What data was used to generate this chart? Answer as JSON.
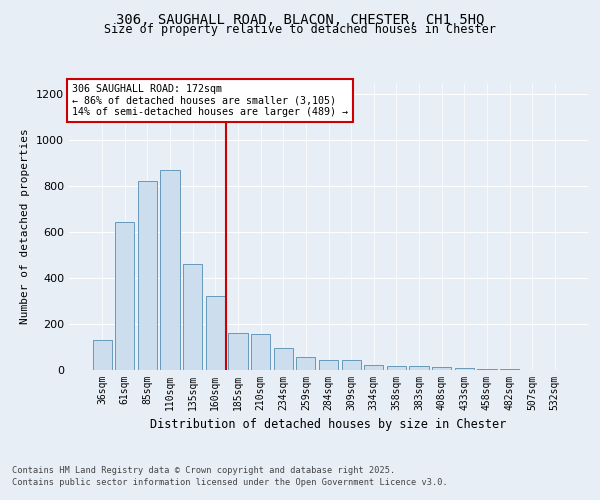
{
  "title_line1": "306, SAUGHALL ROAD, BLACON, CHESTER, CH1 5HQ",
  "title_line2": "Size of property relative to detached houses in Chester",
  "xlabel": "Distribution of detached houses by size in Chester",
  "ylabel": "Number of detached properties",
  "categories": [
    "36sqm",
    "61sqm",
    "85sqm",
    "110sqm",
    "135sqm",
    "160sqm",
    "185sqm",
    "210sqm",
    "234sqm",
    "259sqm",
    "284sqm",
    "309sqm",
    "334sqm",
    "358sqm",
    "383sqm",
    "408sqm",
    "433sqm",
    "458sqm",
    "482sqm",
    "507sqm",
    "532sqm"
  ],
  "values": [
    130,
    645,
    820,
    870,
    460,
    320,
    160,
    155,
    95,
    55,
    42,
    42,
    20,
    17,
    18,
    12,
    10,
    5,
    3,
    2,
    1
  ],
  "bar_color": "#ccdded",
  "bar_edge_color": "#6699bb",
  "vline_color": "#cc0000",
  "annotation_title": "306 SAUGHALL ROAD: 172sqm",
  "annotation_line1": "← 86% of detached houses are smaller (3,105)",
  "annotation_line2": "14% of semi-detached houses are larger (489) →",
  "ylim": [
    0,
    1250
  ],
  "yticks": [
    0,
    200,
    400,
    600,
    800,
    1000,
    1200
  ],
  "footer_line1": "Contains HM Land Registry data © Crown copyright and database right 2025.",
  "footer_line2": "Contains public sector information licensed under the Open Government Licence v3.0.",
  "bg_color": "#e8eef5",
  "plot_bg_color": "#e8eef5"
}
